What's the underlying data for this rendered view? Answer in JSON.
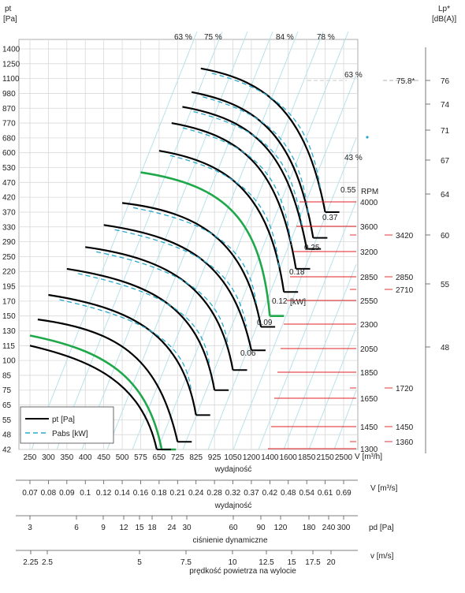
{
  "chart_data": {
    "type": "line",
    "y_axis": {
      "label": "pt",
      "unit": "[Pa]",
      "ticks": [
        "1400",
        "1250",
        "1100",
        "980",
        "870",
        "770",
        "680",
        "600",
        "530",
        "470",
        "420",
        "370",
        "330",
        "290",
        "250",
        "220",
        "195",
        "170",
        "150",
        "130",
        "115",
        "100",
        "85",
        "75",
        "65",
        "55",
        "48",
        "42"
      ]
    },
    "x_axis": {
      "label": "wydajność",
      "unit": "V [m³/h]",
      "ticks": [
        "250",
        "300",
        "350",
        "400",
        "450",
        "500",
        "575",
        "650",
        "725",
        "825",
        "925",
        "1050",
        "1200",
        "1400",
        "1600",
        "1850",
        "2150",
        "2500"
      ]
    },
    "secondary_axes": [
      {
        "label": "wydajność",
        "unit": "V  [m³/s]",
        "ticks": [
          "0.07",
          "0.08",
          "0.09",
          "0.1",
          "0.12",
          "0.14",
          "0.16",
          "0.18",
          "0.21",
          "0.24",
          "0.28",
          "0.32",
          "0.37",
          "0.42",
          "0.48",
          "0.54",
          "0.61",
          "0.69"
        ]
      },
      {
        "label": "ciśnienie dynamiczne",
        "unit": "pd  [Pa]",
        "ticks": [
          "3",
          "6",
          "9",
          "12",
          "15",
          "18",
          "24",
          "30",
          "60",
          "90",
          "120",
          "180",
          "240",
          "300"
        ]
      },
      {
        "label": "prędkość powietrza na wylocie",
        "unit": "v  [m/s]",
        "ticks": [
          "2.25",
          "2.5",
          "5",
          "7.5",
          "10",
          "12.5",
          "15",
          "17.5",
          "20"
        ]
      }
    ],
    "lp_axis": {
      "label": "Lp*",
      "unit": "[dB(A)]",
      "ticks": [
        "76",
        "74",
        "71",
        "67",
        "64",
        "60",
        "55",
        "48"
      ]
    },
    "rpm_label": "RPM",
    "rpm_values": [
      "4000",
      "3600",
      "3200",
      "2850",
      "2550",
      "2300",
      "2050",
      "1850",
      "1650",
      "1450",
      "1300"
    ],
    "rpm_values_right": [
      "3420",
      "2850",
      "2710",
      "1720",
      "1450",
      "1360"
    ],
    "efficiency_labels": [
      "63 %",
      "75 %",
      "84 %",
      "78 %",
      "63 %",
      "43 %"
    ],
    "power_labels": [
      "0.55",
      "0.37",
      "0.25",
      "0.18",
      "0.12",
      "0.09",
      "0.06"
    ],
    "power_unit": "[kW]",
    "lp_marker": "75.8*",
    "legend": [
      {
        "name": "pt [Pa]",
        "style": "solid",
        "color": "#000000"
      },
      {
        "name": "Pabs [kW]",
        "style": "dashed",
        "color": "#2aa8cc"
      }
    ],
    "colors": {
      "pt": "#000000",
      "highlight": "#1fa84a",
      "pabs": "#2aa8cc",
      "rpm_line": "#e02020"
    },
    "pt_curves": [
      {
        "rpm": 4000,
        "highlight": false,
        "points": [
          [
            850,
            1200
          ],
          [
            1400,
            1080
          ],
          [
            1850,
            820
          ],
          [
            2150,
            370
          ]
        ]
      },
      {
        "rpm": 3600,
        "highlight": false,
        "points": [
          [
            800,
            990
          ],
          [
            1300,
            890
          ],
          [
            1700,
            680
          ],
          [
            1950,
            300
          ]
        ]
      },
      {
        "rpm": 3420,
        "highlight": false,
        "points": [
          [
            750,
            880
          ],
          [
            1250,
            790
          ],
          [
            1600,
            600
          ],
          [
            1850,
            270
          ]
        ]
      },
      {
        "rpm": 3200,
        "highlight": false,
        "points": [
          [
            700,
            770
          ],
          [
            1150,
            690
          ],
          [
            1500,
            520
          ],
          [
            1700,
            225
          ]
        ]
      },
      {
        "rpm": 2850,
        "highlight": false,
        "points": [
          [
            650,
            610
          ],
          [
            1050,
            550
          ],
          [
            1400,
            420
          ],
          [
            1550,
            185
          ]
        ]
      },
      {
        "rpm": 2710,
        "highlight": true,
        "points": [
          [
            575,
            510
          ],
          [
            1000,
            460
          ],
          [
            1300,
            350
          ],
          [
            1400,
            150
          ]
        ]
      },
      {
        "rpm": 2550,
        "highlight": false,
        "points": [
          [
            500,
            400
          ],
          [
            850,
            370
          ],
          [
            1150,
            290
          ],
          [
            1300,
            135
          ]
        ]
      },
      {
        "rpm": 2300,
        "highlight": false,
        "points": [
          [
            450,
            335
          ],
          [
            800,
            300
          ],
          [
            1050,
            230
          ],
          [
            1200,
            110
          ]
        ]
      },
      {
        "rpm": 2050,
        "highlight": false,
        "points": [
          [
            400,
            275
          ],
          [
            700,
            245
          ],
          [
            950,
            190
          ],
          [
            1050,
            90
          ]
        ]
      },
      {
        "rpm": 1850,
        "highlight": false,
        "points": [
          [
            350,
            225
          ],
          [
            650,
            200
          ],
          [
            850,
            155
          ],
          [
            925,
            75
          ]
        ]
      },
      {
        "rpm": 1650,
        "highlight": false,
        "points": [
          [
            300,
            180
          ],
          [
            550,
            160
          ],
          [
            750,
            125
          ],
          [
            825,
            58
          ]
        ]
      },
      {
        "rpm": 1450,
        "highlight": false,
        "points": [
          [
            270,
            145
          ],
          [
            500,
            130
          ],
          [
            650,
            100
          ],
          [
            725,
            45
          ]
        ]
      },
      {
        "rpm": 1360,
        "highlight": true,
        "points": [
          [
            250,
            125
          ],
          [
            450,
            110
          ],
          [
            600,
            85
          ],
          [
            660,
            38
          ]
        ]
      },
      {
        "rpm": 1300,
        "highlight": false,
        "points": [
          [
            250,
            115
          ],
          [
            420,
            100
          ],
          [
            580,
            80
          ],
          [
            640,
            36
          ]
        ]
      }
    ]
  }
}
